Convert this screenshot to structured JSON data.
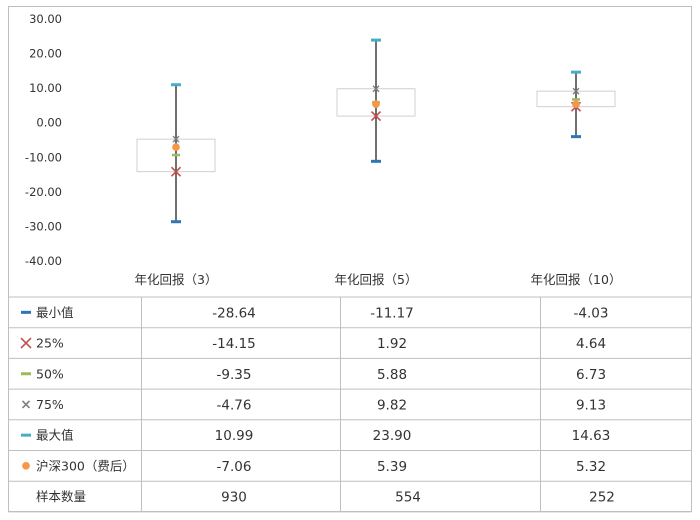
{
  "chart_data": {
    "type": "box",
    "categories": [
      "年化回报（3）",
      "年化回报（5）",
      "年化回报（10）"
    ],
    "y_ticks": [
      "30.00",
      "20.00",
      "10.00",
      "0.00",
      "-10.00",
      "-20.00",
      "-30.00",
      "-40.00"
    ],
    "ylim": [
      -40,
      30
    ],
    "grid": false,
    "colors": {
      "min": "#2e75b6",
      "p25": "#c0504d",
      "p50": "#9bbb59",
      "p75": "#7f7f7f",
      "max": "#4bacc6",
      "hs300": "#f79646",
      "whisker": "#333333",
      "box_border": "#d0d0d0",
      "table_border": "#bfbfbf"
    },
    "series": [
      {
        "key": "min",
        "name": "最小值",
        "marker": "dash",
        "values": [
          -28.64,
          -11.17,
          -4.03
        ],
        "labels": [
          "-28.64",
          "-11.17",
          "-4.03"
        ]
      },
      {
        "key": "p25",
        "name": "25%",
        "marker": "x",
        "values": [
          -14.15,
          1.92,
          4.64
        ],
        "labels": [
          "-14.15",
          "1.92",
          "4.64"
        ]
      },
      {
        "key": "p50",
        "name": "50%",
        "marker": "dash",
        "values": [
          -9.35,
          5.88,
          6.73
        ],
        "labels": [
          "-9.35",
          "5.88",
          "6.73"
        ]
      },
      {
        "key": "p75",
        "name": "75%",
        "marker": "xsmall",
        "values": [
          -4.76,
          9.82,
          9.13
        ],
        "labels": [
          "-4.76",
          "9.82",
          "9.13"
        ]
      },
      {
        "key": "max",
        "name": "最大值",
        "marker": "dash",
        "values": [
          10.99,
          23.9,
          14.63
        ],
        "labels": [
          "10.99",
          "23.90",
          "14.63"
        ]
      },
      {
        "key": "hs300",
        "name": "沪深300（费后）",
        "marker": "dot",
        "values": [
          -7.06,
          5.39,
          5.32
        ],
        "labels": [
          "-7.06",
          "5.39",
          "5.32"
        ]
      }
    ],
    "table": {
      "count_label": "样本数量",
      "counts": [
        "930",
        "554",
        "252"
      ]
    }
  }
}
